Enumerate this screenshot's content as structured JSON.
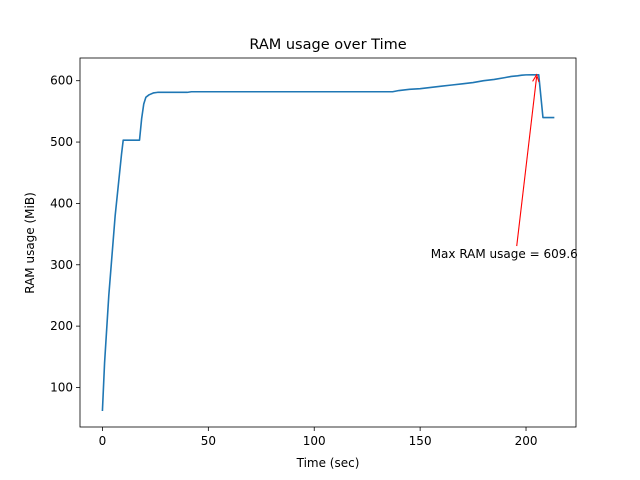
{
  "chart_data": {
    "type": "line",
    "title": "RAM usage over Time",
    "xlabel": "Time (sec)",
    "ylabel": "RAM usage (MiB)",
    "xlim": [
      -10.6,
      223.6
    ],
    "ylim": [
      35.6,
      637.0
    ],
    "xticks": [
      0,
      50,
      100,
      150,
      200
    ],
    "yticks": [
      100,
      200,
      300,
      400,
      500,
      600
    ],
    "grid": false,
    "series": [
      {
        "color": "#1f77b4",
        "x": [
          0,
          1,
          3,
          6,
          9,
          9.8,
          12,
          17.5,
          18.5,
          19.5,
          20.5,
          22,
          24,
          26,
          30,
          40,
          42,
          60,
          80,
          100,
          120,
          125,
          137,
          140,
          145,
          150,
          155,
          160,
          165,
          170,
          175,
          180,
          185,
          190,
          193,
          196,
          198,
          200,
          203,
          206,
          208,
          210,
          213
        ],
        "y": [
          63,
          140,
          250,
          380,
          480,
          503,
          503,
          503,
          538,
          562,
          573,
          577,
          580,
          581,
          581,
          581,
          582,
          582,
          582,
          582,
          582,
          582,
          582,
          584,
          586,
          587,
          589,
          591,
          593,
          595,
          597,
          600,
          602,
          605,
          607,
          608,
          609,
          609.5,
          609.6,
          609.6,
          540,
          540,
          540
        ]
      }
    ],
    "annotations": [
      {
        "text": "Max RAM usage = 609.6",
        "color": "#ff0000",
        "xy": [
          205,
          609.6
        ],
        "xytext": [
          155,
          311
        ]
      }
    ]
  }
}
